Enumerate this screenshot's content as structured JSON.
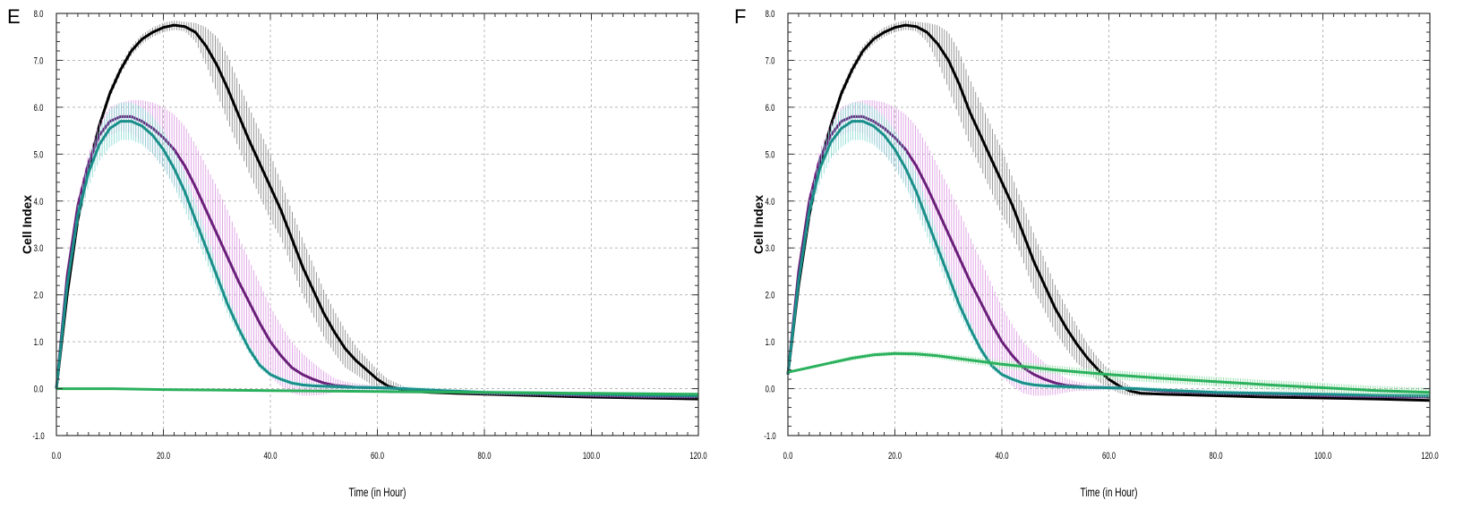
{
  "panels": [
    {
      "letter": "E"
    },
    {
      "letter": "F"
    }
  ],
  "chart_data": [
    {
      "type": "line",
      "panel": "E",
      "title": "",
      "xlabel": "Time (in Hour)",
      "ylabel": "Cell Index",
      "xlim": [
        0,
        120
      ],
      "ylim": [
        -1,
        8
      ],
      "xticks": [
        "0.0",
        "20.0",
        "40.0",
        "60.0",
        "80.0",
        "100.0",
        "120.0"
      ],
      "yticks": [
        "-1.0",
        "0.0",
        "1.0",
        "2.0",
        "3.0",
        "4.0",
        "5.0",
        "6.0",
        "7.0",
        "8.0"
      ],
      "grid": true,
      "legend": "none",
      "series": [
        {
          "color": "#000000",
          "band_color": "#7a7a7a",
          "x": [
            0,
            2,
            4,
            6,
            8,
            10,
            12,
            14,
            16,
            18,
            20,
            22,
            24,
            26,
            28,
            30,
            32,
            34,
            36,
            38,
            40,
            42,
            44,
            46,
            48,
            50,
            52,
            54,
            56,
            58,
            60,
            62,
            64,
            66,
            70,
            80,
            90,
            100,
            110,
            120
          ],
          "y": [
            0.0,
            2.0,
            3.6,
            4.7,
            5.6,
            6.3,
            6.8,
            7.2,
            7.45,
            7.6,
            7.7,
            7.75,
            7.72,
            7.6,
            7.3,
            6.9,
            6.4,
            5.85,
            5.3,
            4.8,
            4.3,
            3.8,
            3.2,
            2.6,
            2.1,
            1.6,
            1.2,
            0.85,
            0.6,
            0.4,
            0.2,
            0.05,
            0.0,
            -0.05,
            -0.08,
            -0.12,
            -0.15,
            -0.18,
            -0.2,
            -0.22
          ],
          "err": [
            0,
            0.05,
            0.08,
            0.1,
            0.1,
            0.1,
            0.1,
            0.1,
            0.1,
            0.1,
            0.1,
            0.1,
            0.1,
            0.2,
            0.4,
            0.6,
            0.7,
            0.7,
            0.7,
            0.7,
            0.7,
            0.6,
            0.6,
            0.6,
            0.55,
            0.5,
            0.45,
            0.4,
            0.3,
            0.25,
            0.2,
            0.15,
            0.1,
            0.05,
            0.03,
            0.03,
            0.03,
            0.03,
            0.03,
            0.03
          ]
        },
        {
          "color": "#6a1f7a",
          "band_color": "#d98fe0",
          "x": [
            0,
            2,
            4,
            6,
            8,
            10,
            12,
            14,
            16,
            18,
            20,
            22,
            24,
            26,
            28,
            30,
            32,
            34,
            36,
            38,
            40,
            42,
            44,
            46,
            48,
            50,
            52,
            54,
            56,
            60,
            65,
            70,
            80,
            90,
            100,
            110,
            120
          ],
          "y": [
            0.0,
            2.4,
            3.9,
            4.8,
            5.4,
            5.7,
            5.8,
            5.8,
            5.7,
            5.55,
            5.35,
            5.1,
            4.75,
            4.3,
            3.8,
            3.3,
            2.8,
            2.3,
            1.85,
            1.4,
            1.0,
            0.7,
            0.45,
            0.3,
            0.2,
            0.12,
            0.07,
            0.05,
            0.03,
            0.02,
            0.0,
            -0.05,
            -0.1,
            -0.12,
            -0.15,
            -0.17,
            -0.18
          ],
          "err": [
            0,
            0.1,
            0.15,
            0.2,
            0.25,
            0.3,
            0.3,
            0.35,
            0.45,
            0.55,
            0.65,
            0.75,
            0.85,
            0.9,
            0.95,
            1.0,
            1.0,
            0.95,
            0.9,
            0.85,
            0.75,
            0.65,
            0.55,
            0.45,
            0.35,
            0.25,
            0.15,
            0.1,
            0.08,
            0.05,
            0.03,
            0.03,
            0.03,
            0.03,
            0.03,
            0.03,
            0.03
          ]
        },
        {
          "color": "#1a8f8a",
          "band_color": "#7fd8d0",
          "x": [
            0,
            2,
            4,
            6,
            8,
            10,
            12,
            14,
            16,
            18,
            20,
            22,
            24,
            26,
            28,
            30,
            32,
            34,
            36,
            38,
            40,
            42,
            44,
            46,
            48,
            50,
            55,
            60,
            65,
            70,
            80,
            90,
            100,
            110,
            120
          ],
          "y": [
            0.0,
            2.2,
            3.7,
            4.6,
            5.2,
            5.55,
            5.7,
            5.7,
            5.6,
            5.4,
            5.1,
            4.7,
            4.2,
            3.6,
            3.0,
            2.4,
            1.8,
            1.3,
            0.85,
            0.5,
            0.3,
            0.2,
            0.12,
            0.08,
            0.06,
            0.05,
            0.03,
            0.02,
            0.0,
            -0.03,
            -0.08,
            -0.1,
            -0.12,
            -0.14,
            -0.15
          ],
          "err": [
            0,
            0.1,
            0.2,
            0.3,
            0.35,
            0.4,
            0.4,
            0.4,
            0.4,
            0.4,
            0.4,
            0.4,
            0.4,
            0.35,
            0.3,
            0.25,
            0.2,
            0.15,
            0.1,
            0.08,
            0.05,
            0.05,
            0.05,
            0.05,
            0.05,
            0.05,
            0.05,
            0.05,
            0.05,
            0.05,
            0.05,
            0.05,
            0.05,
            0.05,
            0.05
          ]
        },
        {
          "color": "#2bb15d",
          "band_color": "#7fd89a",
          "x": [
            0,
            10,
            20,
            30,
            40,
            50,
            60,
            70,
            80,
            90,
            100,
            110,
            120
          ],
          "y": [
            0.0,
            0.0,
            -0.02,
            -0.03,
            -0.04,
            -0.05,
            -0.06,
            -0.07,
            -0.08,
            -0.09,
            -0.1,
            -0.11,
            -0.12
          ],
          "err": [
            0.02,
            0.02,
            0.02,
            0.02,
            0.02,
            0.02,
            0.02,
            0.02,
            0.02,
            0.02,
            0.02,
            0.02,
            0.02
          ]
        }
      ]
    },
    {
      "type": "line",
      "panel": "F",
      "title": "",
      "xlabel": "Time (in Hour)",
      "ylabel": "Cell Index",
      "xlim": [
        0,
        120
      ],
      "ylim": [
        -1,
        8
      ],
      "xticks": [
        "0.0",
        "20.0",
        "40.0",
        "60.0",
        "80.0",
        "100.0",
        "120.0"
      ],
      "yticks": [
        "-1.0",
        "0.0",
        "1.0",
        "2.0",
        "3.0",
        "4.0",
        "5.0",
        "6.0",
        "7.0",
        "8.0"
      ],
      "grid": true,
      "legend": "none",
      "series": [
        {
          "color": "#000000",
          "band_color": "#7a7a7a",
          "x": [
            0,
            2,
            4,
            6,
            8,
            10,
            12,
            14,
            16,
            18,
            20,
            22,
            24,
            26,
            28,
            30,
            32,
            34,
            36,
            38,
            40,
            42,
            44,
            46,
            48,
            50,
            52,
            54,
            56,
            58,
            60,
            62,
            64,
            66,
            70,
            80,
            90,
            100,
            110,
            120
          ],
          "y": [
            0.3,
            2.2,
            3.7,
            4.8,
            5.6,
            6.3,
            6.8,
            7.2,
            7.45,
            7.6,
            7.7,
            7.75,
            7.72,
            7.6,
            7.35,
            7.0,
            6.5,
            5.9,
            5.4,
            4.9,
            4.4,
            3.9,
            3.3,
            2.7,
            2.2,
            1.7,
            1.3,
            0.95,
            0.65,
            0.4,
            0.2,
            0.05,
            -0.05,
            -0.1,
            -0.12,
            -0.15,
            -0.18,
            -0.2,
            -0.22,
            -0.25
          ],
          "err": [
            0,
            0.05,
            0.08,
            0.1,
            0.1,
            0.1,
            0.1,
            0.1,
            0.1,
            0.1,
            0.1,
            0.1,
            0.1,
            0.2,
            0.4,
            0.6,
            0.7,
            0.7,
            0.7,
            0.7,
            0.7,
            0.6,
            0.6,
            0.6,
            0.55,
            0.5,
            0.45,
            0.4,
            0.3,
            0.25,
            0.2,
            0.15,
            0.1,
            0.05,
            0.03,
            0.03,
            0.03,
            0.03,
            0.03,
            0.03
          ]
        },
        {
          "color": "#6a1f7a",
          "band_color": "#d98fe0",
          "x": [
            0,
            2,
            4,
            6,
            8,
            10,
            12,
            14,
            16,
            18,
            20,
            22,
            24,
            26,
            28,
            30,
            32,
            34,
            36,
            38,
            40,
            42,
            44,
            46,
            48,
            50,
            52,
            54,
            56,
            60,
            65,
            70,
            80,
            90,
            100,
            110,
            120
          ],
          "y": [
            0.3,
            2.5,
            4.0,
            4.9,
            5.4,
            5.7,
            5.8,
            5.8,
            5.7,
            5.55,
            5.35,
            5.1,
            4.75,
            4.3,
            3.8,
            3.3,
            2.8,
            2.3,
            1.85,
            1.4,
            1.0,
            0.7,
            0.45,
            0.3,
            0.2,
            0.12,
            0.07,
            0.05,
            0.03,
            0.02,
            0.0,
            -0.05,
            -0.1,
            -0.12,
            -0.15,
            -0.17,
            -0.18
          ],
          "err": [
            0,
            0.1,
            0.15,
            0.2,
            0.25,
            0.3,
            0.3,
            0.35,
            0.45,
            0.55,
            0.65,
            0.75,
            0.85,
            0.9,
            0.95,
            1.0,
            1.0,
            0.95,
            0.9,
            0.85,
            0.75,
            0.65,
            0.55,
            0.45,
            0.35,
            0.25,
            0.15,
            0.1,
            0.08,
            0.05,
            0.03,
            0.03,
            0.03,
            0.03,
            0.03,
            0.03,
            0.03
          ]
        },
        {
          "color": "#1a8f8a",
          "band_color": "#7fd8d0",
          "x": [
            0,
            2,
            4,
            6,
            8,
            10,
            12,
            14,
            16,
            18,
            20,
            22,
            24,
            26,
            28,
            30,
            32,
            34,
            36,
            38,
            40,
            42,
            44,
            46,
            48,
            50,
            55,
            60,
            65,
            70,
            80,
            90,
            100,
            110,
            120
          ],
          "y": [
            0.3,
            2.3,
            3.8,
            4.7,
            5.25,
            5.55,
            5.7,
            5.7,
            5.6,
            5.4,
            5.1,
            4.7,
            4.2,
            3.6,
            3.0,
            2.4,
            1.8,
            1.3,
            0.85,
            0.5,
            0.3,
            0.2,
            0.12,
            0.08,
            0.06,
            0.05,
            0.03,
            0.02,
            0.0,
            -0.03,
            -0.08,
            -0.1,
            -0.12,
            -0.14,
            -0.15
          ],
          "err": [
            0,
            0.1,
            0.2,
            0.3,
            0.35,
            0.4,
            0.4,
            0.4,
            0.4,
            0.4,
            0.4,
            0.4,
            0.4,
            0.35,
            0.3,
            0.25,
            0.2,
            0.15,
            0.1,
            0.08,
            0.05,
            0.05,
            0.05,
            0.05,
            0.05,
            0.05,
            0.05,
            0.05,
            0.05,
            0.05,
            0.05,
            0.05,
            0.05,
            0.05,
            0.05
          ]
        },
        {
          "color": "#2bb15d",
          "band_color": "#7fd89a",
          "x": [
            0,
            4,
            8,
            12,
            16,
            20,
            24,
            28,
            32,
            36,
            40,
            45,
            50,
            55,
            60,
            65,
            70,
            80,
            90,
            100,
            110,
            120
          ],
          "y": [
            0.35,
            0.45,
            0.55,
            0.65,
            0.72,
            0.75,
            0.74,
            0.7,
            0.64,
            0.58,
            0.52,
            0.46,
            0.4,
            0.35,
            0.3,
            0.26,
            0.22,
            0.15,
            0.08,
            0.02,
            -0.04,
            -0.08
          ],
          "err": [
            0.03,
            0.03,
            0.04,
            0.05,
            0.05,
            0.05,
            0.06,
            0.06,
            0.07,
            0.08,
            0.08,
            0.09,
            0.09,
            0.09,
            0.1,
            0.1,
            0.1,
            0.1,
            0.1,
            0.1,
            0.1,
            0.1
          ]
        }
      ]
    }
  ]
}
